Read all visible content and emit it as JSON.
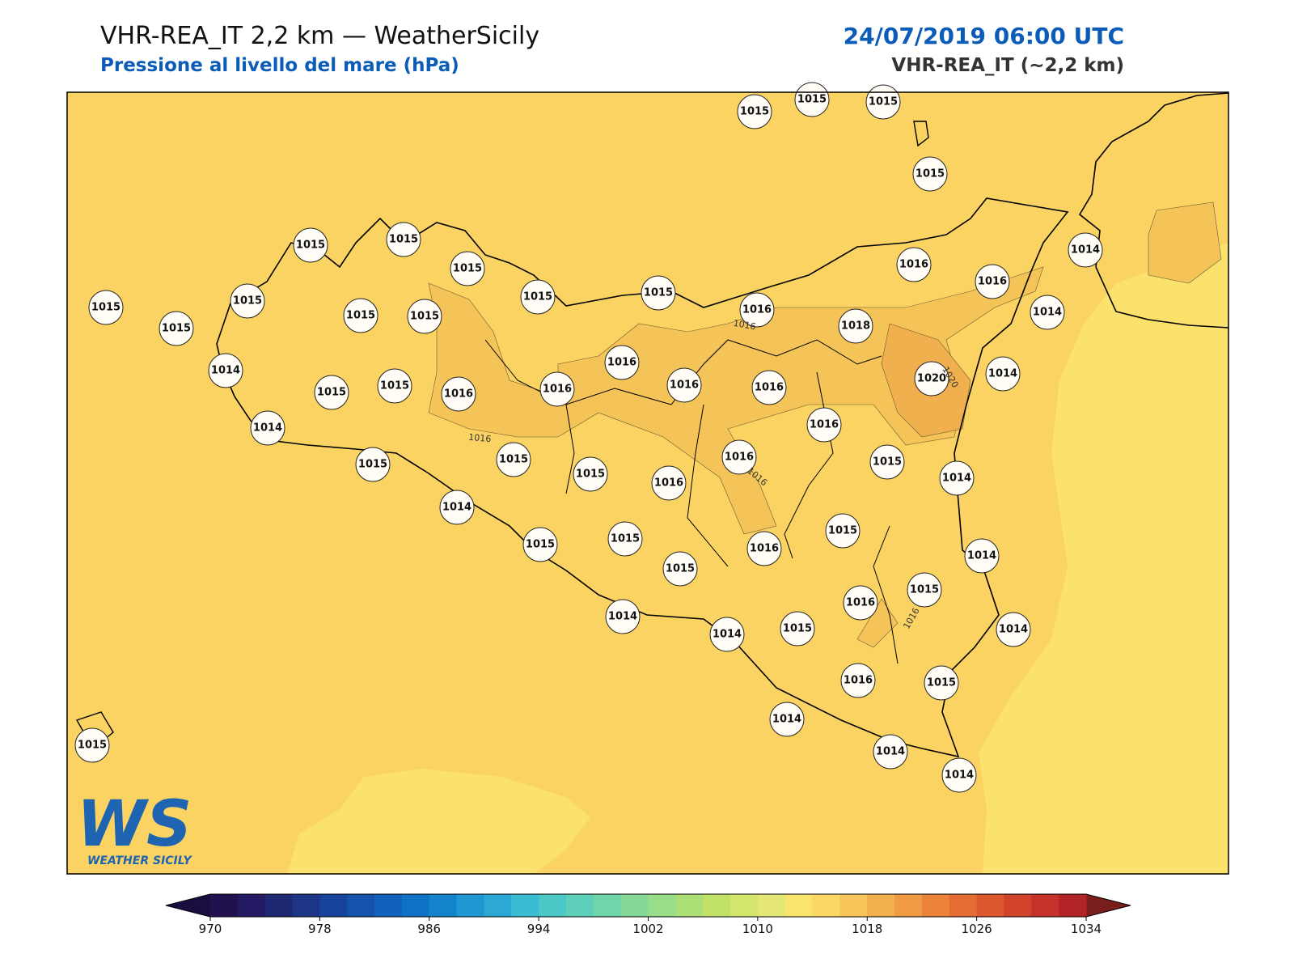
{
  "header": {
    "title": "VHR-REA_IT 2,2 km — WeatherSicily",
    "subtitle": "Pressione al livello del mare (hPa)",
    "datetime": "24/07/2019 06:00 UTC",
    "model": "VHR-REA_IT (~2,2 km)"
  },
  "stations": [
    "1015",
    "1015",
    "1015",
    "1015",
    "1015",
    "1015",
    "1015",
    "1015",
    "1015",
    "1015",
    "1015",
    "1015",
    "1015",
    "1015",
    "1014",
    "1016",
    "1016",
    "1014",
    "1016",
    "1018",
    "1014",
    "1015",
    "1015",
    "1016",
    "1016",
    "1016",
    "1016",
    "1016",
    "1020",
    "1014",
    "1014",
    "1016",
    "1015",
    "1015",
    "1015",
    "1016",
    "1016",
    "1015",
    "1014",
    "1014",
    "1015",
    "1015",
    "1015",
    "1016",
    "1015",
    "1014",
    "1014",
    "1014",
    "1015",
    "1016",
    "1015",
    "1014",
    "1016",
    "1015",
    "1014",
    "1014",
    "1014",
    "1015"
  ],
  "contour_labels": [
    "1016",
    "1016",
    "1016",
    "1016",
    "1020"
  ],
  "logo": {
    "mark": "WS",
    "text": "WEATHER SICILY"
  },
  "colorbar": {
    "lim": [
      970,
      1034
    ],
    "ticks": [
      970,
      978,
      986,
      994,
      1002,
      1010,
      1018,
      1026,
      1034
    ],
    "colors": [
      "#21124f",
      "#231a63",
      "#1f2873",
      "#1c3587",
      "#17439c",
      "#1452ad",
      "#1162bb",
      "#0e73c6",
      "#1384cc",
      "#1f97d2",
      "#2ba9d4",
      "#3abdd2",
      "#4cc8c6",
      "#5ecfb8",
      "#70d5a8",
      "#84d999",
      "#98dd88",
      "#acdf76",
      "#c1e267",
      "#d4e56c",
      "#e4e675",
      "#f9e46e",
      "#fbd766",
      "#f7c55a",
      "#f3b04f",
      "#f09a44",
      "#ec833a",
      "#e56c33",
      "#dc562e",
      "#d2432b",
      "#c43229",
      "#b22425"
    ],
    "under": "#1a0d40",
    "over": "#7a1d1d"
  }
}
